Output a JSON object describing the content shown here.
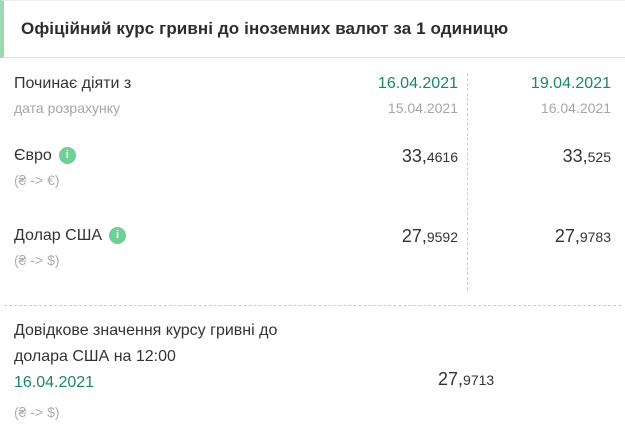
{
  "title": "Офіційний курс гривні до іноземних валют за 1 одиницю",
  "header": {
    "label": "Починає діяти з",
    "sublabel": "дата розрахунку",
    "col1": {
      "effective_date": "16.04.2021",
      "calc_date": "15.04.2021"
    },
    "col2": {
      "effective_date": "19.04.2021",
      "calc_date": "16.04.2021"
    }
  },
  "rows": [
    {
      "name": "Євро",
      "pair": "(₴ -> €)",
      "info_icon": "i",
      "values": [
        {
          "int": "33,",
          "dec": "4616"
        },
        {
          "int": "33,",
          "dec": "525"
        }
      ]
    },
    {
      "name": "Долар США",
      "pair": "(₴ -> $)",
      "info_icon": "i",
      "values": [
        {
          "int": "27,",
          "dec": "9592"
        },
        {
          "int": "27,",
          "dec": "9783"
        }
      ]
    }
  ],
  "reference": {
    "text_line1": "Довідкове значення курсу гривні до",
    "text_line2": "долара США на 12:00",
    "date": "16.04.2021",
    "pair": "(₴ -> $)",
    "value": {
      "int": "27,",
      "dec": "9713"
    }
  },
  "colors": {
    "accent_green": "#1c866a",
    "icon_green": "#6fcf97",
    "title_border_green": "#9fd7b3",
    "text_dark": "#333333",
    "text_gray": "#a6a6a6",
    "divider": "#cccccc"
  }
}
